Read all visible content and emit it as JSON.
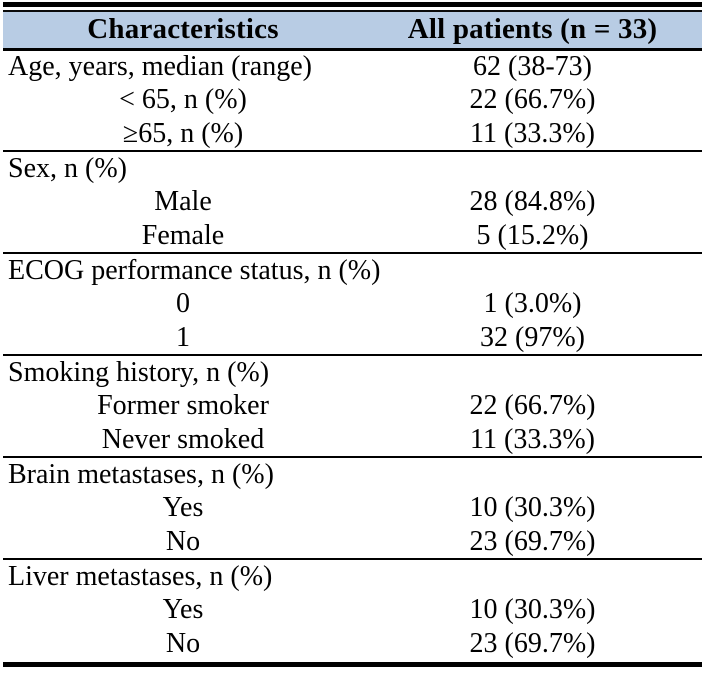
{
  "header": {
    "characteristics": "Characteristics",
    "all_patients": "All patients (n = 33)"
  },
  "rows": [
    {
      "label": "Age, years, median (range)",
      "value": "62 (38-73)"
    },
    {
      "label": "< 65, n (%)",
      "value": "22 (66.7%)"
    },
    {
      "label": "≥65, n (%)",
      "value": "11 (33.3%)"
    },
    {
      "label": "Sex, n (%)",
      "value": ""
    },
    {
      "label": "Male",
      "value": "28 (84.8%)"
    },
    {
      "label": "Female",
      "value": "5 (15.2%)"
    },
    {
      "label": "ECOG performance status, n (%)",
      "value": ""
    },
    {
      "label": "0",
      "value": "1 (3.0%)"
    },
    {
      "label": "1",
      "value": "32 (97%)"
    },
    {
      "label": "Smoking history, n (%)",
      "value": ""
    },
    {
      "label": "Former smoker",
      "value": "22 (66.7%)"
    },
    {
      "label": "Never smoked",
      "value": "11 (33.3%)"
    },
    {
      "label": "Brain metastases, n (%)",
      "value": ""
    },
    {
      "label": "Yes",
      "value": "10 (30.3%)"
    },
    {
      "label": "No",
      "value": "23 (69.7%)"
    },
    {
      "label": "Liver metastases, n (%)",
      "value": ""
    },
    {
      "label": "Yes",
      "value": "10 (30.3%)"
    },
    {
      "label": "No",
      "value": "23 (69.7%)"
    }
  ],
  "colors": {
    "header_bg": "#b8cce4",
    "rule": "#000000",
    "text": "#000000"
  }
}
